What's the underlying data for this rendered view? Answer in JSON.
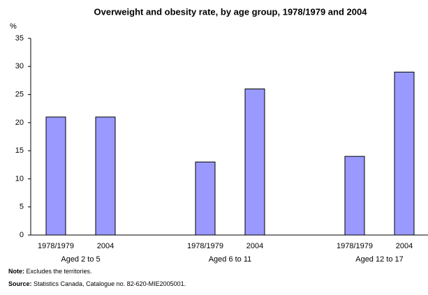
{
  "chart_data": {
    "type": "bar",
    "title": "Overweight and obesity rate, by age group, 1978/1979 and 2004",
    "y_label": "%",
    "categories": [
      "Aged 2 to 5",
      "Aged 6 to 11",
      "Aged 12 to 17"
    ],
    "series": [
      {
        "name": "1978/1979",
        "color": "#9999ff",
        "values": [
          21,
          13,
          14
        ]
      },
      {
        "name": "2004",
        "color": "#9999ff",
        "values": [
          21,
          26,
          29
        ]
      }
    ],
    "ylim": [
      0,
      35
    ],
    "yticks": [
      0,
      5,
      10,
      15,
      20,
      25,
      30,
      35
    ],
    "grid": false,
    "notes": [
      {
        "label": "Note:",
        "text": "Excludes the territories."
      },
      {
        "label": "Source:",
        "text": "Statistics Canada, Catalogue no. 82-620-MIE2005001."
      }
    ]
  }
}
